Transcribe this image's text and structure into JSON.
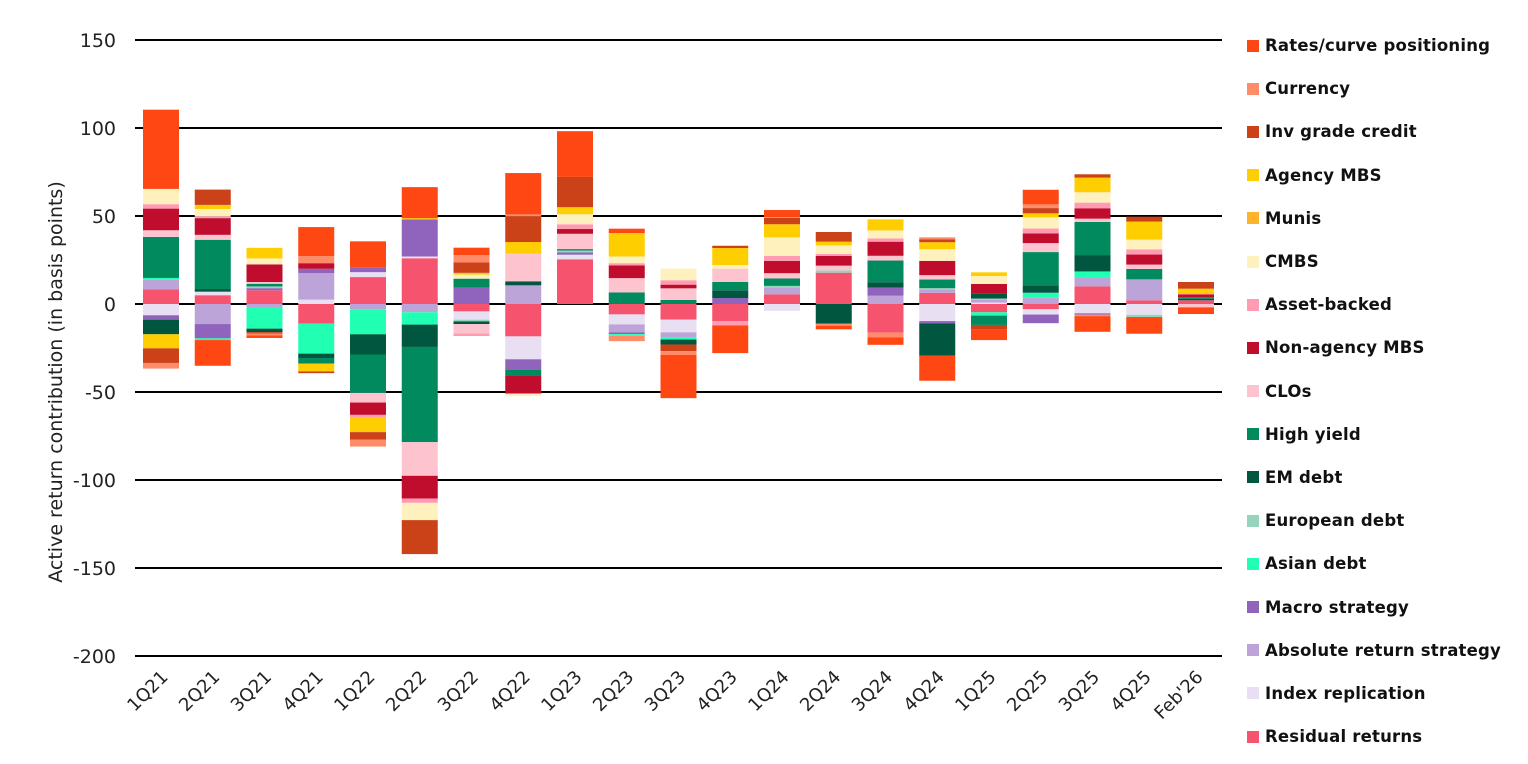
{
  "chart_data": {
    "type": "bar",
    "stacked": true,
    "title": "",
    "xlabel": "",
    "ylabel": "Active return contribution (in basis points)",
    "ylim": [
      -200,
      150
    ],
    "yticks": [
      150,
      100,
      50,
      0,
      -50,
      -100,
      -150,
      -200
    ],
    "ytick_labels": [
      "150",
      "100",
      "50",
      "0",
      "-50",
      "-100",
      "-150",
      "-200"
    ],
    "grid": "horizontal",
    "legend_position": "right",
    "categories": [
      "1Q21",
      "2Q21",
      "3Q21",
      "4Q21",
      "1Q22",
      "2Q22",
      "3Q22",
      "4Q22",
      "1Q23",
      "2Q23",
      "3Q23",
      "4Q23",
      "1Q24",
      "2Q24",
      "3Q24",
      "4Q24",
      "1Q25",
      "2Q25",
      "3Q25",
      "4Q25",
      "Feb'26"
    ],
    "series": [
      {
        "name": "Rates/curve positioning",
        "color": "#ff4713",
        "values": [
          45,
          -14.6,
          -1.5,
          16.5,
          15,
          17.6,
          4.2,
          23.5,
          26,
          2.5,
          -24.6,
          -15.7,
          4,
          -2.1,
          -4.2,
          -14.2,
          -5.9,
          8.3,
          -8.9,
          -9.5,
          -3.8
        ]
      },
      {
        "name": "Currency",
        "color": "#ff8c69",
        "values": [
          -3.2,
          0,
          -1,
          4,
          -4,
          0,
          4.2,
          1.1,
          0,
          -3,
          -2.1,
          0,
          0.5,
          -1.1,
          -2.7,
          1.1,
          0,
          2.1,
          -0.8,
          0,
          0
        ]
      },
      {
        "name": "Inv grade credit",
        "color": "#cc4218",
        "values": [
          -8.3,
          8.7,
          -0.8,
          -1,
          -4.2,
          -19.3,
          5.9,
          14.6,
          17.2,
          0,
          -3.8,
          1.3,
          3.6,
          5.5,
          0,
          1.7,
          -2.7,
          3,
          1.9,
          2.8,
          3.8
        ]
      },
      {
        "name": "Agency MBS",
        "color": "#ffce00",
        "values": [
          -8,
          2.3,
          6,
          -4.4,
          -8.1,
          0.8,
          1,
          6.6,
          4,
          13.3,
          0,
          9.7,
          7.4,
          2.1,
          6.3,
          4,
          2.1,
          2.3,
          8.3,
          10.2,
          2.7
        ]
      },
      {
        "name": "Munis",
        "color": "#ffb32a",
        "values": [
          0,
          0,
          0,
          0,
          0,
          0,
          0,
          0,
          0,
          0,
          0,
          0,
          0,
          0,
          0,
          0,
          0,
          0,
          0,
          0,
          0
        ]
      },
      {
        "name": "CMBS",
        "color": "#fff1bd",
        "values": [
          8.7,
          4.2,
          3.4,
          0,
          0,
          -9.8,
          2.3,
          -1.5,
          5.7,
          3.8,
          6.6,
          2,
          10.6,
          4.9,
          4.5,
          6.6,
          4.5,
          6.3,
          5.9,
          5.5,
          0
        ]
      },
      {
        "name": "Asset-backed",
        "color": "#ff9bb3",
        "values": [
          2.5,
          1,
          0,
          0,
          -1.7,
          -2.5,
          -1.5,
          0,
          2.7,
          1.3,
          2.5,
          -2.5,
          2.8,
          1.1,
          1.9,
          0,
          0,
          2.8,
          3.2,
          3,
          0.6
        ]
      },
      {
        "name": "Non-agency MBS",
        "color": "#c00c2d",
        "values": [
          12.3,
          9.5,
          10,
          3.2,
          -7,
          -12.9,
          0,
          -10,
          2.7,
          7.2,
          2.1,
          0,
          7,
          5.5,
          8,
          8.1,
          5.3,
          5.5,
          5.9,
          5.7,
          1.5
        ]
      },
      {
        "name": "CLOs",
        "color": "#fdc4d0",
        "values": [
          3.8,
          2.8,
          1,
          0,
          -5.5,
          -19.1,
          -5.3,
          15.7,
          8.7,
          8.1,
          6.6,
          7.6,
          3,
          2.7,
          2.7,
          2.5,
          0,
          5.1,
          1.9,
          2.5,
          -1.9
        ]
      },
      {
        "name": "High yield",
        "color": "#008a5e",
        "values": [
          23.3,
          28,
          1.5,
          -3.2,
          -21.8,
          -54.1,
          5.1,
          -3.6,
          0.8,
          6.6,
          2.3,
          4.7,
          4.2,
          0,
          12.3,
          4.9,
          -5.3,
          18.9,
          18.8,
          5.9,
          1
        ]
      },
      {
        "name": "EM debt",
        "color": "#00563f",
        "values": [
          -8.3,
          1.5,
          -2,
          -2.5,
          -11.5,
          -12.7,
          -1.5,
          2.3,
          0,
          0,
          -2.8,
          4.4,
          0,
          -11.2,
          3,
          -18.4,
          3,
          4.2,
          9.3,
          0,
          0.8
        ]
      },
      {
        "name": "European debt",
        "color": "#95d5bd",
        "values": [
          0,
          0,
          1,
          0,
          0,
          0,
          -1,
          0,
          1.1,
          0,
          0,
          0,
          0.8,
          1.3,
          0,
          0.6,
          0.8,
          0,
          0,
          -1.3,
          0
        ]
      },
      {
        "name": "Asian debt",
        "color": "#21ffb3",
        "values": [
          1,
          -1,
          -12.3,
          -17,
          -14.2,
          -7,
          0,
          0,
          0,
          -1,
          -1.1,
          0,
          0,
          0,
          0,
          0,
          -1.9,
          2.8,
          3.4,
          0,
          0
        ]
      },
      {
        "name": "Macro strategy",
        "color": "#9063bd",
        "values": [
          -2.5,
          -8.1,
          1.2,
          2.5,
          2.5,
          21,
          9.3,
          -5.9,
          1.3,
          -1,
          0,
          3.4,
          0,
          0,
          4.7,
          -1.3,
          0,
          -4.9,
          -0.8,
          0,
          0
        ]
      },
      {
        "name": "Absolute return strategy",
        "color": "#bca4d8",
        "values": [
          5.5,
          -11.4,
          -1.7,
          15,
          -3,
          -4.7,
          0,
          10.6,
          0,
          -4.5,
          -3,
          0,
          4,
          0,
          4.7,
          2.1,
          1.5,
          3.6,
          5.1,
          11.9,
          0
        ]
      },
      {
        "name": "Index replication",
        "color": "#e8e0f2",
        "values": [
          -6.4,
          2,
          0,
          2.5,
          2.8,
          1,
          -4.7,
          -13,
          2.6,
          -5.7,
          -7.2,
          0,
          -3.9,
          0,
          0,
          -9.7,
          0.8,
          -3,
          -5.3,
          -6.1,
          0
        ]
      },
      {
        "name": "Residual returns",
        "color": "#f5536e",
        "values": [
          8.3,
          5,
          7.8,
          -11.2,
          15.3,
          26,
          -4.2,
          -18.4,
          25.4,
          -5.9,
          -8.9,
          -9.7,
          5.5,
          17.8,
          -16.3,
          6.3,
          -4.7,
          -3,
          10,
          2.1,
          2.1
        ]
      }
    ]
  }
}
